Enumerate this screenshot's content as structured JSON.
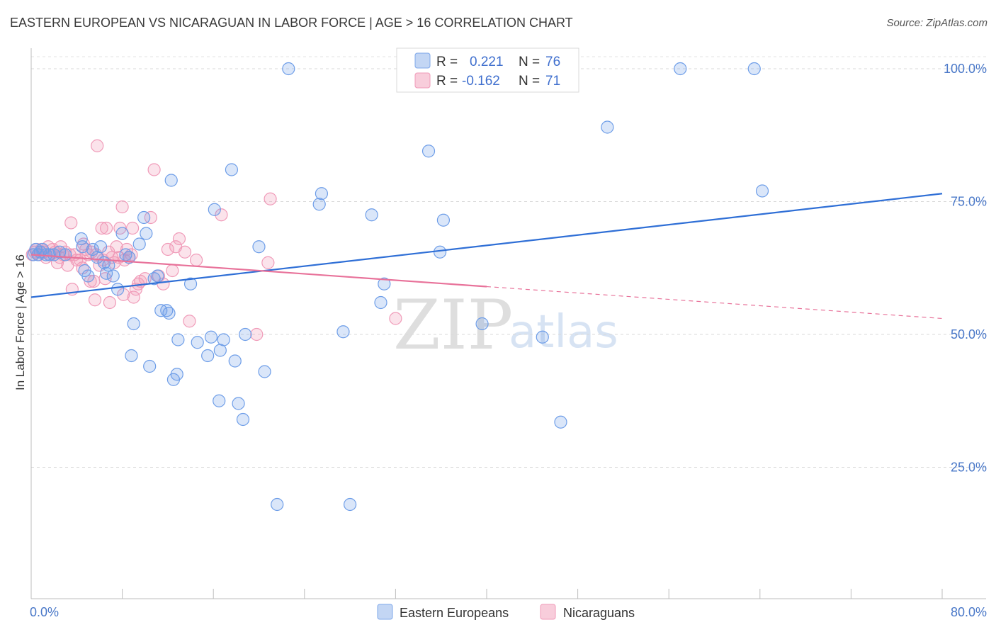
{
  "title": "EASTERN EUROPEAN VS NICARAGUAN IN LABOR FORCE | AGE > 16 CORRELATION CHART",
  "source": "Source: ZipAtlas.com",
  "watermark": {
    "zip": "ZIP",
    "atlas": "atlas"
  },
  "legend_stats": {
    "r_label": "R =",
    "n_label": "N =",
    "series1": {
      "r": "0.221",
      "n": "76"
    },
    "series2": {
      "r": "-0.162",
      "n": "71"
    }
  },
  "chart_data": {
    "type": "scatter",
    "title": "EASTERN EUROPEAN VS NICARAGUAN IN LABOR FORCE | AGE > 16 CORRELATION CHART",
    "xlabel": "",
    "ylabel": "In Labor Force | Age > 16",
    "xlim": [
      0,
      80
    ],
    "ylim": [
      0,
      105
    ],
    "x_tick_labels": [
      "0.0%",
      "80.0%"
    ],
    "y_ticks": [
      25,
      50,
      75,
      100
    ],
    "y_tick_labels": [
      "25.0%",
      "50.0%",
      "75.0%",
      "100.0%"
    ],
    "grid": true,
    "legend_position": "bottom",
    "colors": {
      "series1": "#6d9de8",
      "series2": "#f09ab8",
      "line1": "#2f6fd6",
      "line2": "#e8729a",
      "axis_text": "#4a78c8"
    },
    "series": [
      {
        "name": "Eastern Europeans",
        "r": 0.221,
        "n": 76,
        "trend": {
          "x0": 0,
          "y0": 57.0,
          "x1": 80,
          "y1": 76.5
        },
        "points": [
          [
            0.2,
            65
          ],
          [
            0.4,
            66
          ],
          [
            0.6,
            65
          ],
          [
            0.8,
            65.5
          ],
          [
            1.0,
            66
          ],
          [
            1.3,
            65
          ],
          [
            1.6,
            65
          ],
          [
            2.0,
            65
          ],
          [
            2.5,
            65.5
          ],
          [
            3.0,
            65
          ],
          [
            4.4,
            68
          ],
          [
            4.5,
            66.5
          ],
          [
            4.7,
            62
          ],
          [
            5.0,
            61
          ],
          [
            5.4,
            66
          ],
          [
            5.8,
            64.5
          ],
          [
            6.1,
            66.5
          ],
          [
            6.4,
            63.5
          ],
          [
            6.6,
            61.5
          ],
          [
            6.8,
            63
          ],
          [
            7.2,
            61
          ],
          [
            7.6,
            58.5
          ],
          [
            8.0,
            69
          ],
          [
            8.3,
            65
          ],
          [
            8.6,
            64.5
          ],
          [
            8.8,
            46
          ],
          [
            9.0,
            52
          ],
          [
            9.5,
            67
          ],
          [
            9.9,
            72
          ],
          [
            10.1,
            69
          ],
          [
            10.4,
            44
          ],
          [
            10.8,
            60.5
          ],
          [
            11.1,
            61
          ],
          [
            11.4,
            54.5
          ],
          [
            11.9,
            54.5
          ],
          [
            12.1,
            54
          ],
          [
            12.3,
            79
          ],
          [
            12.5,
            41.5
          ],
          [
            12.8,
            42.5
          ],
          [
            12.9,
            49
          ],
          [
            14.0,
            59.5
          ],
          [
            14.6,
            48.5
          ],
          [
            15.5,
            46
          ],
          [
            15.8,
            49.5
          ],
          [
            16.1,
            73.5
          ],
          [
            16.5,
            37.5
          ],
          [
            16.6,
            47
          ],
          [
            16.9,
            49
          ],
          [
            17.6,
            81
          ],
          [
            17.9,
            45
          ],
          [
            18.2,
            37
          ],
          [
            18.6,
            34
          ],
          [
            18.8,
            50
          ],
          [
            20.0,
            66.5
          ],
          [
            20.5,
            43
          ],
          [
            21.6,
            18
          ],
          [
            22.6,
            100
          ],
          [
            25.3,
            74.5
          ],
          [
            25.5,
            76.5
          ],
          [
            27.4,
            50.5
          ],
          [
            28.0,
            18
          ],
          [
            29.9,
            72.5
          ],
          [
            30.7,
            56
          ],
          [
            31.0,
            59.5
          ],
          [
            34.9,
            84.5
          ],
          [
            35.9,
            65.5
          ],
          [
            36.2,
            71.5
          ],
          [
            39.6,
            52
          ],
          [
            44.9,
            49.5
          ],
          [
            46.5,
            33.5
          ],
          [
            50.6,
            89
          ],
          [
            57.0,
            100
          ],
          [
            63.5,
            100
          ],
          [
            64.2,
            77
          ]
        ]
      },
      {
        "name": "Nicaraguans",
        "r": -0.162,
        "n": 71,
        "trend": {
          "x0": 0,
          "y0": 65.0,
          "x1": 80,
          "y1": 53.0,
          "solid_until_x": 40
        },
        "points": [
          [
            0.1,
            65
          ],
          [
            0.3,
            65.5
          ],
          [
            0.5,
            66
          ],
          [
            0.7,
            65
          ],
          [
            0.9,
            66
          ],
          [
            1.1,
            65.5
          ],
          [
            1.3,
            64.5
          ],
          [
            1.5,
            66.5
          ],
          [
            1.7,
            65
          ],
          [
            1.9,
            66
          ],
          [
            2.1,
            65.5
          ],
          [
            2.3,
            63.5
          ],
          [
            2.5,
            64.5
          ],
          [
            2.6,
            66.5
          ],
          [
            2.8,
            65
          ],
          [
            3.0,
            65.5
          ],
          [
            3.2,
            63
          ],
          [
            3.4,
            65
          ],
          [
            3.5,
            71
          ],
          [
            3.6,
            58.5
          ],
          [
            3.8,
            65
          ],
          [
            4.0,
            64
          ],
          [
            4.3,
            64
          ],
          [
            4.5,
            62.5
          ],
          [
            4.6,
            67
          ],
          [
            4.8,
            66
          ],
          [
            5.0,
            65
          ],
          [
            5.2,
            60
          ],
          [
            5.3,
            65.5
          ],
          [
            5.5,
            60
          ],
          [
            5.6,
            56.5
          ],
          [
            5.7,
            65
          ],
          [
            5.8,
            85.5
          ],
          [
            6.0,
            63
          ],
          [
            6.2,
            70
          ],
          [
            6.3,
            64
          ],
          [
            6.5,
            60.5
          ],
          [
            6.6,
            70
          ],
          [
            6.8,
            65.5
          ],
          [
            6.9,
            56
          ],
          [
            7.1,
            64.5
          ],
          [
            7.3,
            63.5
          ],
          [
            7.5,
            66.5
          ],
          [
            7.7,
            64.5
          ],
          [
            7.8,
            70
          ],
          [
            8.0,
            74
          ],
          [
            8.1,
            57.5
          ],
          [
            8.2,
            64
          ],
          [
            8.4,
            66
          ],
          [
            8.6,
            64.5
          ],
          [
            8.8,
            65
          ],
          [
            8.9,
            70
          ],
          [
            9.0,
            57
          ],
          [
            9.2,
            58.5
          ],
          [
            9.4,
            59.5
          ],
          [
            9.6,
            60
          ],
          [
            10.0,
            60.5
          ],
          [
            10.5,
            72
          ],
          [
            10.8,
            81
          ],
          [
            11.2,
            61
          ],
          [
            11.6,
            59.5
          ],
          [
            12.0,
            66
          ],
          [
            12.4,
            62
          ],
          [
            12.7,
            66.5
          ],
          [
            13.0,
            68
          ],
          [
            13.5,
            65.5
          ],
          [
            13.9,
            52.5
          ],
          [
            14.5,
            64
          ],
          [
            16.7,
            72.5
          ],
          [
            19.8,
            50
          ],
          [
            20.8,
            63.5
          ],
          [
            21.0,
            75.5
          ],
          [
            32.0,
            53
          ]
        ]
      }
    ]
  }
}
